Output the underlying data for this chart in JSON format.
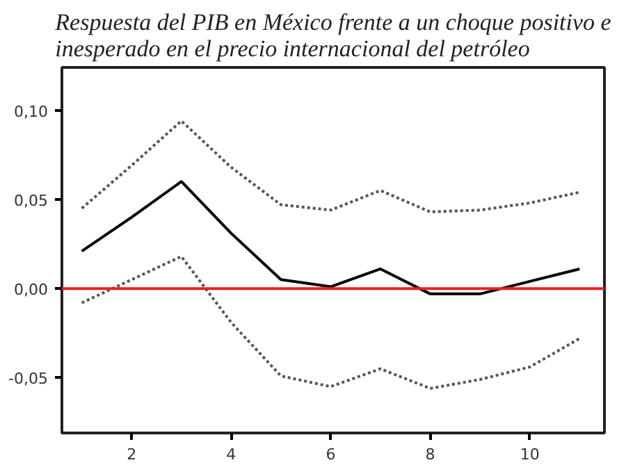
{
  "chart_data": {
    "type": "line",
    "title": "Respuesta del PIB en México frente a un choque positivo e\ninesperado en el precio internacional del petróleo",
    "x": [
      1,
      2,
      3,
      4,
      5,
      6,
      7,
      8,
      9,
      10,
      11
    ],
    "series": [
      {
        "color": "#555555",
        "line_style": "dotted",
        "values": [
          0.045,
          0.069,
          0.094,
          0.068,
          0.047,
          0.044,
          0.055,
          0.043,
          0.044,
          0.048,
          0.054
        ]
      },
      {
        "color": "#000000",
        "line_style": "solid",
        "values": [
          0.021,
          0.04,
          0.06,
          0.031,
          0.005,
          0.001,
          0.011,
          -0.003,
          -0.003,
          0.004,
          0.011
        ]
      },
      {
        "color": "#555555",
        "line_style": "dotted",
        "values": [
          -0.008,
          0.005,
          0.018,
          -0.019,
          -0.049,
          -0.055,
          -0.045,
          -0.056,
          -0.051,
          -0.044,
          -0.028
        ]
      }
    ],
    "xlim": [
      0.6,
      11.5
    ],
    "ylim": [
      -0.081,
      0.124
    ],
    "xticks": [
      2,
      4,
      6,
      8,
      10
    ],
    "yticks": [
      {
        "value": -0.05,
        "label": "-0,05"
      },
      {
        "value": 0,
        "label": "0,00"
      },
      {
        "value": 0.05,
        "label": "0,05"
      },
      {
        "value": 0.1,
        "label": "0,10"
      }
    ],
    "ref_lines": [
      {
        "axis": "y",
        "value": 0,
        "color": "#ee1c25"
      }
    ],
    "grid": false
  }
}
